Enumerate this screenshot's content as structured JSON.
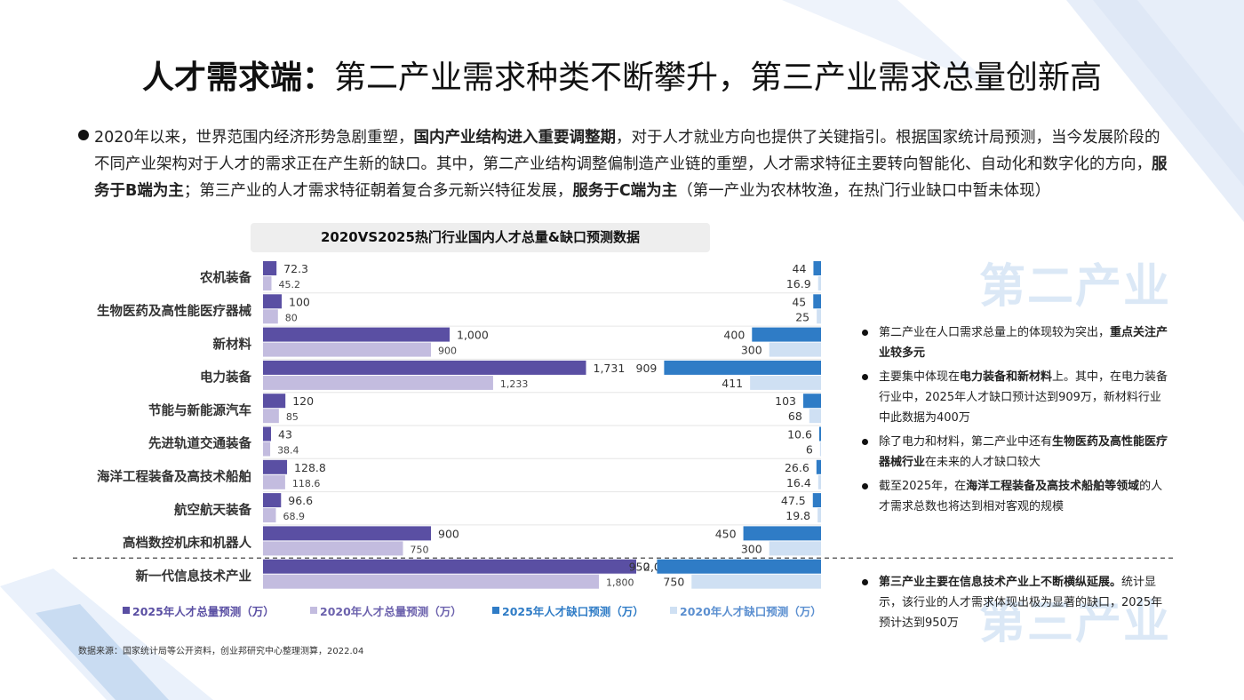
{
  "title": {
    "bold": "人才需求端",
    "colon": "：",
    "rest": "第二产业需求种类不断攀升，第三产业需求总量创新高"
  },
  "intro": {
    "p1": "2020年以来，世界范围内经济形势急剧重塑，",
    "b1": "国内产业结构进入重要调整期",
    "p2": "，对于人才就业方向也提供了关键指引。根据国家统计局预测，当今发展阶段的不同产业架构对于人才的需求正在产生新的缺口。其中，第二产业结构调整偏制造产业链的重塑，人才需求特征主要转向智能化、自动化和数字化的方向，",
    "b2": "服务于B端为主",
    "p3": "；第三产业的人才需求特征朝着复合多元新兴特征发展，",
    "b3": "服务于C端为主",
    "p4": "（第一产业为农林牧渔，在热门行业缺口中暂未体现）"
  },
  "chart_data": {
    "type": "bar",
    "title": "2020VS2025热门行业国内人才总量&缺口预测数据",
    "categories": [
      "农机装备",
      "生物医药及高性能医疗器械",
      "新材料",
      "电力装备",
      "节能与新能源汽车",
      "先进轨道交通装备",
      "海洋工程装备及高技术船舶",
      "航空航天装备",
      "高档数控机床和机器人",
      "新一代信息技术产业"
    ],
    "series": [
      {
        "name": "2025年人才总量预测（万）",
        "values": [
          72.3,
          100,
          1000,
          1731,
          120,
          43,
          128.8,
          96.6,
          900,
          2000
        ],
        "labels": [
          "72.3",
          "100",
          "1,000",
          "1,731",
          "120",
          "43",
          "128.8",
          "96.6",
          "900",
          "2,000"
        ],
        "color": "#5a4fa3"
      },
      {
        "name": "2020年人才总量预测（万）",
        "values": [
          45.2,
          80,
          900,
          1233,
          85,
          38.4,
          118.6,
          68.9,
          750,
          1800
        ],
        "labels": [
          "45.2",
          "80",
          "900",
          "1,233",
          "85",
          "38.4",
          "118.6",
          "68.9",
          "750",
          "1,800"
        ],
        "color": "#c3bcdf"
      },
      {
        "name": "2025年人才缺口预测（万）",
        "values": [
          44,
          45,
          400,
          909,
          103,
          10.6,
          26.6,
          47.5,
          450,
          950
        ],
        "labels": [
          "44",
          "45",
          "400",
          "909",
          "103",
          "10.6",
          "26.6",
          "47.5",
          "450",
          "950"
        ],
        "color": "#2f7cc6"
      },
      {
        "name": "2020年人才缺口预测（万）",
        "values": [
          16.9,
          25,
          300,
          411,
          68,
          6,
          16.4,
          19.8,
          300,
          750
        ],
        "labels": [
          "16.9",
          "25",
          "300",
          "411",
          "68",
          "6",
          "16.4",
          "19.8",
          "300",
          "750"
        ],
        "color": "#cfe0f3"
      }
    ],
    "xlim_total": [
      0,
      2400
    ],
    "xlim_gap": [
      0,
      1050
    ],
    "divider_after_index": 8
  },
  "sections": {
    "secondary": "第二产业",
    "tertiary": "第三产业"
  },
  "notes_secondary": [
    {
      "t1": "第二产业在人口需求总量上的体现较为突出，",
      "b": "重点关注产业较多元",
      "t2": ""
    },
    {
      "t1": "主要集中体现在",
      "b": "电力装备和新材料",
      "t2": "上。其中，在电力装备行业中，2025年人才缺口预计达到909万，新材料行业中此数据为400万"
    },
    {
      "t1": "除了电力和材料，第二产业中还有",
      "b": "生物医药及高性能医疗器械行业",
      "t2": "在未来的人才缺口较大"
    },
    {
      "t1": "截至2025年，在",
      "b": "海洋工程装备及高技术船舶等领域",
      "t2": "的人才需求总数也将达到相对客观的规模"
    }
  ],
  "notes_tertiary": [
    {
      "t1": "",
      "b": "第三产业主要在信息技术产业上不断横纵延展。",
      "t2": "统计显示，该行业的人才需求体现出极为显著的缺口，2025年预计达到950万"
    }
  ],
  "source": "数据来源：国家统计局等公开资料，创业邦研究中心整理测算，2022.04"
}
